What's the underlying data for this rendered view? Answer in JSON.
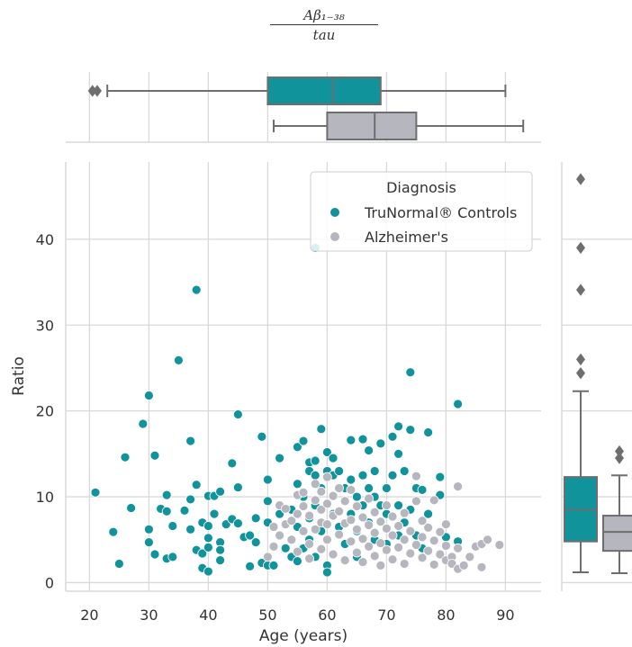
{
  "title": {
    "numerator": "Aβ₁₋₃₈",
    "denominator": "tau"
  },
  "colors": {
    "controls": "#11939c",
    "alzheimers": "#b6b6be",
    "grid": "#d9d9d9",
    "box_line": "#6e6e6e"
  },
  "chart_data": {
    "type": "scatter",
    "xlabel": "Age (years)",
    "ylabel": "Ratio",
    "xlim": [
      16,
      96
    ],
    "ylim": [
      -1,
      49
    ],
    "xticks": [
      "20",
      "30",
      "40",
      "50",
      "60",
      "70",
      "80",
      "90"
    ],
    "yticks": [
      "0",
      "10",
      "20",
      "30",
      "40"
    ],
    "grid": true,
    "legend": {
      "title": "Diagnosis",
      "placement": "top-right",
      "entries": [
        "TruNormal® Controls",
        "Alzheimer's"
      ]
    },
    "series": [
      {
        "name": "TruNormal® Controls",
        "color": "#11939c",
        "points": [
          [
            21,
            10.5
          ],
          [
            24,
            5.9
          ],
          [
            25,
            2.2
          ],
          [
            26,
            14.6
          ],
          [
            27,
            8.7
          ],
          [
            29,
            18.5
          ],
          [
            30,
            21.8
          ],
          [
            30,
            6.2
          ],
          [
            30,
            4.7
          ],
          [
            31,
            14.8
          ],
          [
            31,
            3.3
          ],
          [
            32,
            8.6
          ],
          [
            33,
            10.2
          ],
          [
            33,
            8.3
          ],
          [
            33,
            2.8
          ],
          [
            34,
            6.6
          ],
          [
            34,
            3.0
          ],
          [
            35,
            25.9
          ],
          [
            36,
            8.4
          ],
          [
            37,
            16.5
          ],
          [
            37,
            9.7
          ],
          [
            37,
            6.2
          ],
          [
            38,
            34.1
          ],
          [
            38,
            11.4
          ],
          [
            38,
            3.8
          ],
          [
            39,
            7.0
          ],
          [
            39,
            3.4
          ],
          [
            39,
            1.7
          ],
          [
            40,
            10.1
          ],
          [
            40,
            6.6
          ],
          [
            40,
            5.2
          ],
          [
            40,
            4.1
          ],
          [
            40,
            1.3
          ],
          [
            41,
            10.1
          ],
          [
            41,
            8.0
          ],
          [
            42,
            10.6
          ],
          [
            42,
            4.7
          ],
          [
            42,
            3.8
          ],
          [
            42,
            2.6
          ],
          [
            43,
            6.8
          ],
          [
            44,
            13.9
          ],
          [
            44,
            7.4
          ],
          [
            45,
            19.6
          ],
          [
            45,
            11.1
          ],
          [
            45,
            6.9
          ],
          [
            46,
            5.3
          ],
          [
            47,
            5.5
          ],
          [
            47,
            1.9
          ],
          [
            48,
            7.5
          ],
          [
            48,
            4.7
          ],
          [
            49,
            17.0
          ],
          [
            49,
            2.3
          ],
          [
            50,
            12.0
          ],
          [
            50,
            9.5
          ],
          [
            50,
            7.0
          ],
          [
            50,
            2.0
          ],
          [
            51,
            2.0
          ],
          [
            52,
            14.5
          ],
          [
            52,
            8.0
          ],
          [
            53,
            4.0
          ],
          [
            54,
            8.5
          ],
          [
            54,
            3.0
          ],
          [
            55,
            15.8
          ],
          [
            55,
            11.5
          ],
          [
            55,
            6.5
          ],
          [
            55,
            2.5
          ],
          [
            56,
            16.5
          ],
          [
            56,
            10.0
          ],
          [
            56,
            4.0
          ],
          [
            57,
            14.0
          ],
          [
            57,
            13.0
          ],
          [
            57,
            7.5
          ],
          [
            57,
            5.0
          ],
          [
            58,
            39.0
          ],
          [
            58,
            14.2
          ],
          [
            58,
            12.5
          ],
          [
            58,
            9.0
          ],
          [
            58,
            3.0
          ],
          [
            59,
            17.9
          ],
          [
            59,
            11.0
          ],
          [
            59,
            6.0
          ],
          [
            60,
            15.2
          ],
          [
            60,
            13.0
          ],
          [
            60,
            2.0
          ],
          [
            60,
            1.2
          ],
          [
            61,
            12.5
          ],
          [
            61,
            14.5
          ],
          [
            61,
            8.0
          ],
          [
            62,
            13.0
          ],
          [
            62,
            6.5
          ],
          [
            63,
            11.0
          ],
          [
            63,
            4.5
          ],
          [
            64,
            16.6
          ],
          [
            64,
            12.0
          ],
          [
            64,
            8.0
          ],
          [
            65,
            10.0
          ],
          [
            65,
            6.0
          ],
          [
            65,
            3.0
          ],
          [
            66,
            16.7
          ],
          [
            66,
            12.5
          ],
          [
            66,
            9.0
          ],
          [
            67,
            15.4
          ],
          [
            67,
            11.0
          ],
          [
            67,
            7.0
          ],
          [
            68,
            13.0
          ],
          [
            68,
            10.0
          ],
          [
            68,
            5.0
          ],
          [
            69,
            16.2
          ],
          [
            69,
            9.0
          ],
          [
            70,
            11.0
          ],
          [
            70,
            8.0
          ],
          [
            70,
            4.5
          ],
          [
            71,
            17.0
          ],
          [
            71,
            12.5
          ],
          [
            72,
            18.2
          ],
          [
            72,
            15.0
          ],
          [
            72,
            9.0
          ],
          [
            72,
            5.5
          ],
          [
            73,
            13.0
          ],
          [
            73,
            7.0
          ],
          [
            74,
            24.5
          ],
          [
            74,
            17.8
          ],
          [
            74,
            8.5
          ],
          [
            75,
            11.0
          ],
          [
            75,
            5.5
          ],
          [
            76,
            10.8
          ],
          [
            76,
            4.0
          ],
          [
            77,
            17.5
          ],
          [
            77,
            8.0
          ],
          [
            79,
            12.3
          ],
          [
            79,
            10.2
          ],
          [
            80,
            5.3
          ],
          [
            82,
            20.8
          ],
          [
            82,
            4.8
          ]
        ]
      },
      {
        "name": "Alzheimer's",
        "color": "#b6b6be",
        "points": [
          [
            50,
            3.0
          ],
          [
            51,
            4.2
          ],
          [
            51,
            6.5
          ],
          [
            52,
            5.5
          ],
          [
            52,
            9.0
          ],
          [
            53,
            6.8
          ],
          [
            53,
            8.6
          ],
          [
            54,
            5.0
          ],
          [
            54,
            7.2
          ],
          [
            55,
            10.2
          ],
          [
            55,
            3.6
          ],
          [
            55,
            8.0
          ],
          [
            56,
            6.0
          ],
          [
            56,
            8.9
          ],
          [
            56,
            10.5
          ],
          [
            57,
            4.5
          ],
          [
            57,
            7.8
          ],
          [
            57,
            2.8
          ],
          [
            58,
            6.2
          ],
          [
            58,
            9.6
          ],
          [
            58,
            11.5
          ],
          [
            59,
            3.9
          ],
          [
            59,
            7.0
          ],
          [
            59,
            8.5
          ],
          [
            59,
            10.6
          ],
          [
            60,
            5.0
          ],
          [
            60,
            6.8
          ],
          [
            60,
            9.2
          ],
          [
            60,
            12.3
          ],
          [
            61,
            3.3
          ],
          [
            61,
            7.8
          ],
          [
            61,
            10.1
          ],
          [
            62,
            5.6
          ],
          [
            62,
            8.3
          ],
          [
            62,
            11.0
          ],
          [
            63,
            2.6
          ],
          [
            63,
            6.9
          ],
          [
            63,
            9.5
          ],
          [
            64,
            4.8
          ],
          [
            64,
            7.3
          ],
          [
            64,
            10.8
          ],
          [
            65,
            3.5
          ],
          [
            65,
            6.2
          ],
          [
            65,
            8.9
          ],
          [
            66,
            2.4
          ],
          [
            66,
            5.1
          ],
          [
            66,
            7.6
          ],
          [
            67,
            4.2
          ],
          [
            67,
            6.7
          ],
          [
            67,
            9.8
          ],
          [
            68,
            3.1
          ],
          [
            68,
            5.8
          ],
          [
            68,
            8.2
          ],
          [
            69,
            2.0
          ],
          [
            69,
            4.6
          ],
          [
            69,
            7.1
          ],
          [
            70,
            3.8
          ],
          [
            70,
            6.3
          ],
          [
            70,
            9.0
          ],
          [
            71,
            2.7
          ],
          [
            71,
            5.5
          ],
          [
            71,
            7.7
          ],
          [
            72,
            4.1
          ],
          [
            72,
            6.6
          ],
          [
            73,
            2.2
          ],
          [
            73,
            5.0
          ],
          [
            73,
            8.1
          ],
          [
            74,
            3.4
          ],
          [
            74,
            6.0
          ],
          [
            75,
            4.4
          ],
          [
            75,
            12.4
          ],
          [
            75,
            9.5
          ],
          [
            76,
            2.9
          ],
          [
            76,
            5.3
          ],
          [
            76,
            7.2
          ],
          [
            77,
            3.7
          ],
          [
            77,
            6.4
          ],
          [
            78,
            2.1
          ],
          [
            78,
            4.9
          ],
          [
            78,
            9.6
          ],
          [
            79,
            3.3
          ],
          [
            79,
            5.9
          ],
          [
            80,
            2.6
          ],
          [
            80,
            4.3
          ],
          [
            80,
            6.8
          ],
          [
            81,
            3.0
          ],
          [
            81,
            2.2
          ],
          [
            82,
            11.2
          ],
          [
            82,
            4.0
          ],
          [
            82,
            1.6
          ],
          [
            83,
            2.0
          ],
          [
            84,
            3.0
          ],
          [
            85,
            4.2
          ],
          [
            86,
            1.8
          ],
          [
            86,
            4.5
          ],
          [
            87,
            5.0
          ],
          [
            89,
            4.4
          ]
        ]
      }
    ],
    "marginal_x": {
      "axis": "Age (years)",
      "boxes": [
        {
          "group": "TruNormal® Controls",
          "whisker_low": 23,
          "q1": 50,
          "median": 61,
          "q3": 69,
          "whisker_high": 90,
          "outliers": [
            20.5,
            21.3
          ]
        },
        {
          "group": "Alzheimer's",
          "whisker_low": 51,
          "q1": 60,
          "median": 68,
          "q3": 75,
          "whisker_high": 93,
          "outliers": []
        }
      ]
    },
    "marginal_y": {
      "axis": "Ratio",
      "boxes": [
        {
          "group": "TruNormal® Controls",
          "whisker_low": 1.2,
          "q1": 4.8,
          "median": 8.5,
          "q3": 12.3,
          "whisker_high": 22.3,
          "outliers": [
            24.4,
            26.0,
            34.1,
            39.0,
            47.0
          ]
        },
        {
          "group": "Alzheimer's",
          "whisker_low": 1.1,
          "q1": 3.7,
          "median": 5.9,
          "q3": 7.8,
          "whisker_high": 12.5,
          "outliers": [
            14.5,
            15.3
          ]
        }
      ]
    }
  }
}
